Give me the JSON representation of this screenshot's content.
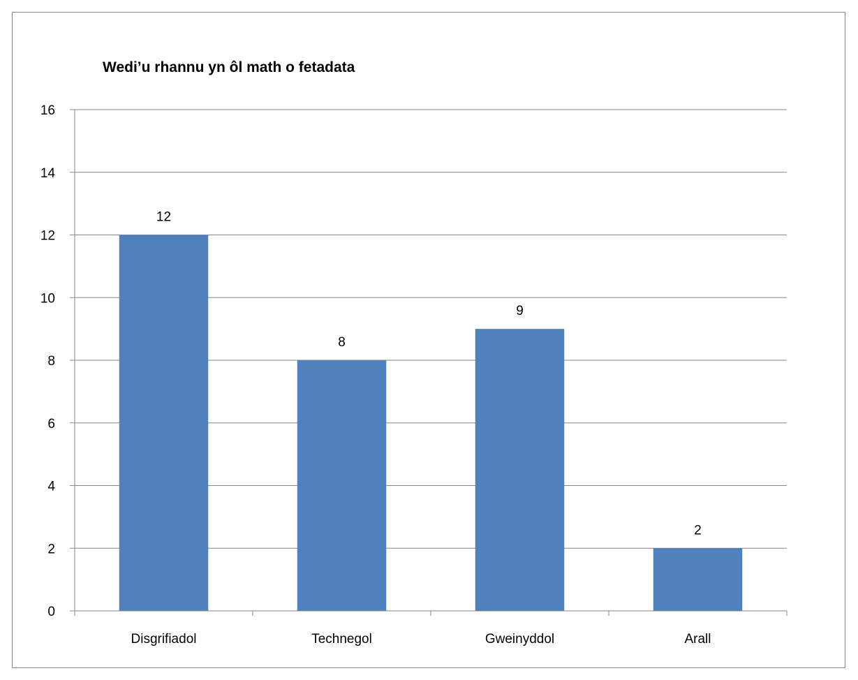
{
  "chart_data": {
    "type": "bar",
    "title": "Wedi’u rhannu yn ôl math o fetadata",
    "xlabel": "",
    "ylabel": "",
    "categories": [
      "Disgrifiadol",
      "Technegol",
      "Gweinyddol",
      "Arall"
    ],
    "values": [
      12,
      8,
      9,
      2
    ],
    "data_labels": [
      "12",
      "8",
      "9",
      "2"
    ],
    "ylim": [
      0,
      16
    ],
    "y_ticks": [
      0,
      2,
      4,
      6,
      8,
      10,
      12,
      14,
      16
    ],
    "y_tick_labels": [
      "0",
      "2",
      "4",
      "6",
      "8",
      "10",
      "12",
      "14",
      "16"
    ],
    "grid": true,
    "legend": "none",
    "colors": {
      "bar": "#4F81BD",
      "grid": "#868686",
      "axis": "#868686",
      "border": "#868686"
    }
  }
}
